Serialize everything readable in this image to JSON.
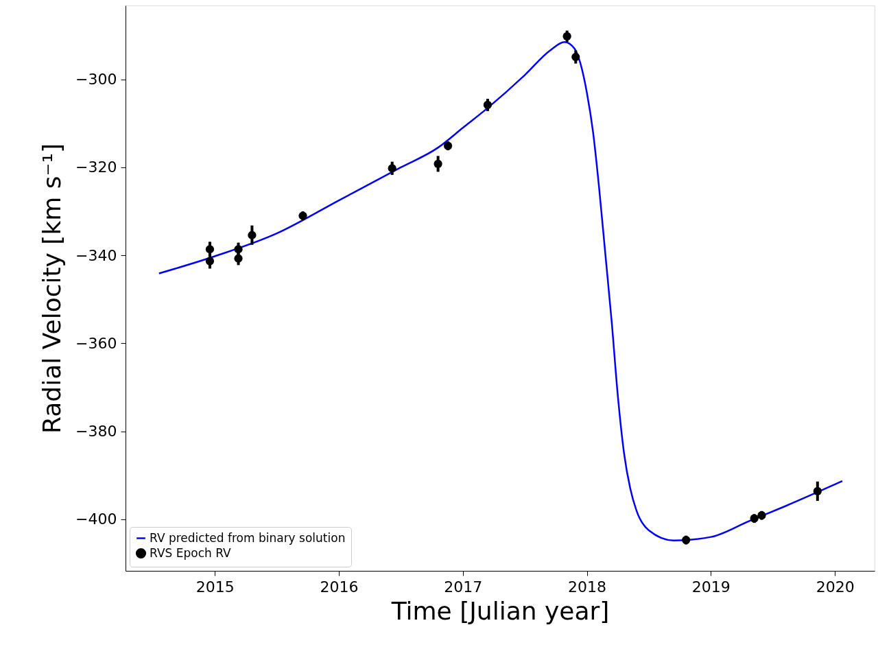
{
  "chart_data": {
    "type": "line",
    "xlabel": "Time [Julian year]",
    "ylabel": "Radial Velocity [km s⁻¹]",
    "xlim": [
      2014.28,
      2020.32
    ],
    "ylim": [
      -411.7,
      -283.2
    ],
    "xticks": [
      2015,
      2016,
      2017,
      2018,
      2019,
      2020
    ],
    "yticks": [
      -400,
      -380,
      -360,
      -340,
      -320,
      -300
    ],
    "grid": false,
    "legend": "bottom left",
    "series": [
      {
        "name": "RV predicted from binary solution",
        "color": "#0000ff",
        "line_style": "solid",
        "marker": "none",
        "x": [
          2014.55,
          2015.0,
          2015.5,
          2016.0,
          2016.5,
          2016.8,
          2017.0,
          2017.2,
          2017.5,
          2017.7,
          2017.82,
          2017.9,
          2018.0,
          2018.05,
          2018.1,
          2018.15,
          2018.2,
          2018.25,
          2018.3,
          2018.35,
          2018.4,
          2018.5,
          2018.7,
          2019.0,
          2019.3,
          2019.6,
          2020.06
        ],
        "values": [
          -344.1,
          -340.2,
          -335.0,
          -327.5,
          -320.0,
          -315.5,
          -311.0,
          -306.5,
          -299.0,
          -293.5,
          -291.5,
          -293,
          -303,
          -312,
          -325,
          -340,
          -355,
          -372,
          -385,
          -393,
          -398,
          -402.5,
          -404.8,
          -404,
          -400.5,
          -397,
          -391.3
        ]
      },
      {
        "name": "RVS Epoch RV",
        "type": "scatter",
        "color": "#000000",
        "marker": "circle",
        "x": [
          2014.96,
          2014.96,
          2015.19,
          2015.19,
          2015.3,
          2015.71,
          2016.43,
          2016.8,
          2016.88,
          2017.2,
          2017.84,
          2017.91,
          2018.8,
          2019.35,
          2019.41,
          2019.86
        ],
        "values": [
          -338.6,
          -341.3,
          -338.6,
          -340.7,
          -335.4,
          -331.0,
          -320.2,
          -319.2,
          -315.1,
          -305.8,
          -290.2,
          -294.9,
          -404.7,
          -399.8,
          -399.1,
          -393.6
        ],
        "errors": [
          1.7,
          1.7,
          1.5,
          1.5,
          2.2,
          1.0,
          1.5,
          1.8,
          1.0,
          1.4,
          1.3,
          1.5,
          1.0,
          1.0,
          1.0,
          2.2
        ]
      }
    ]
  }
}
